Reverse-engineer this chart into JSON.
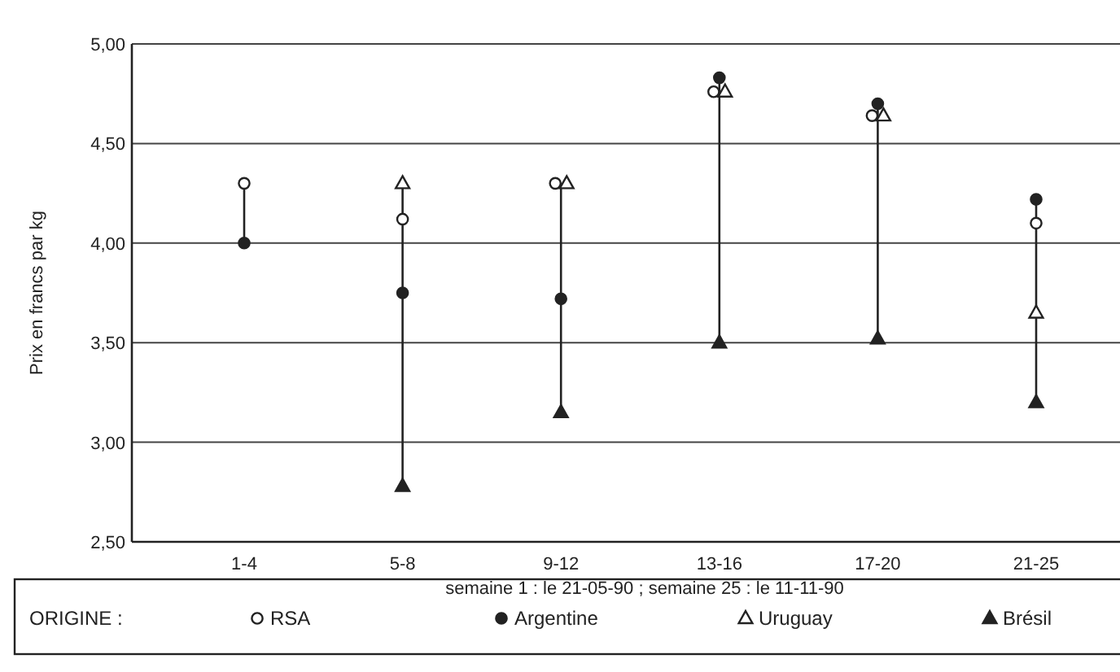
{
  "chart_data": {
    "type": "scatter",
    "ylabel": "Prix en francs par kg",
    "xlabel": "semaine 1 :  le 21-05-90 ;   semaine 25 : le 11-11-90",
    "legend_title": "ORIGINE :",
    "categories": [
      "1-4",
      "5-8",
      "9-12",
      "13-16",
      "17-20",
      "21-25"
    ],
    "series": [
      {
        "name": "RSA",
        "color": "#ffffff",
        "marker": "circle",
        "values": [
          4.3,
          4.12,
          4.3,
          4.76,
          4.64,
          4.1
        ]
      },
      {
        "name": "Argentine",
        "color": "#222222",
        "marker": "circle",
        "values": [
          4.0,
          3.75,
          3.72,
          4.83,
          4.7,
          4.22
        ]
      },
      {
        "name": "Uruguay",
        "color": "#ffffff",
        "marker": "triangle",
        "values": [
          null,
          4.3,
          4.3,
          4.76,
          4.64,
          3.65
        ]
      },
      {
        "name": "Brésil",
        "color": "#222222",
        "marker": "triangle",
        "values": [
          null,
          2.78,
          3.15,
          3.5,
          3.52,
          3.2
        ]
      }
    ],
    "ylim": [
      2.5,
      5
    ],
    "yticks": [
      {
        "value": 2.5,
        "label": "2,50"
      },
      {
        "value": 3,
        "label": "3,00"
      },
      {
        "value": 3.5,
        "label": "3,50"
      },
      {
        "value": 4,
        "label": "4,00"
      },
      {
        "value": 4.5,
        "label": "4,50"
      },
      {
        "value": 5,
        "label": "5,00"
      }
    ],
    "grid": "y",
    "legend": "bottom"
  }
}
